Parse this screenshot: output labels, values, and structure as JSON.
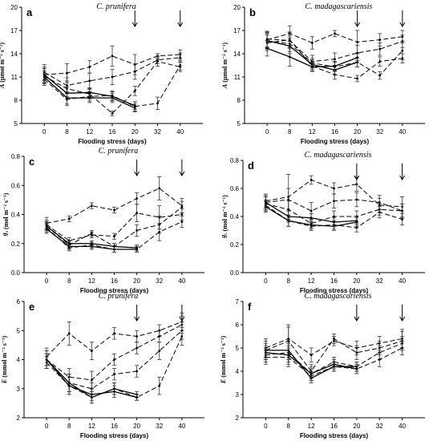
{
  "figure": {
    "x_axis_label": "Flooding stress (days)",
    "x_categories": [
      "0",
      "8",
      "12",
      "16",
      "20",
      "32",
      "40"
    ]
  },
  "chart_data": [
    {
      "id": "a",
      "letter": "a",
      "species": "C. prunifera",
      "type": "line",
      "ylabel_var": "A",
      "ylabel_unit": " (µmol m⁻² s⁻¹)",
      "ylim": [
        5,
        20
      ],
      "yticks": [
        5,
        8,
        11,
        14,
        17,
        20
      ],
      "arrows_at": [
        4,
        6
      ],
      "series": [
        {
          "style": "dashed",
          "values": [
            11.3,
            11.5,
            12.3,
            13.7,
            12.6,
            13.7,
            13.9
          ],
          "errors": [
            1.0,
            1.2,
            0.8,
            1.3,
            1.3,
            0.3,
            0.6
          ]
        },
        {
          "style": "dashed",
          "values": [
            11.6,
            9.9,
            10.5,
            11.0,
            11.7,
            13.2,
            13.5
          ],
          "errors": [
            1.0,
            1.0,
            1.0,
            1.0,
            1.0,
            0.5,
            0.6
          ]
        },
        {
          "style": "dashed",
          "values": [
            11.1,
            9.5,
            8.8,
            6.3,
            9.2,
            13.0,
            12.3
          ],
          "errors": [
            1.0,
            1.0,
            0.6,
            0.3,
            0.6,
            0.6,
            0.6
          ]
        },
        {
          "style": "dashed",
          "values": [
            10.7,
            8.1,
            8.5,
            8.6,
            7.2,
            7.6,
            12.5
          ],
          "errors": [
            0.8,
            0.8,
            0.6,
            0.6,
            0.6,
            0.8,
            0.6
          ]
        },
        {
          "style": "solid",
          "values": [
            11.0,
            8.3,
            8.3,
            8.3,
            7.0,
            null,
            null
          ],
          "errors": [
            0.8,
            0.8,
            0.6,
            0.6,
            0.5,
            null,
            null
          ]
        },
        {
          "style": "solid",
          "values": [
            11.3,
            8.9,
            9.0,
            8.5,
            7.3,
            null,
            null
          ],
          "errors": [
            0.8,
            0.8,
            0.6,
            0.6,
            0.5,
            null,
            null
          ]
        }
      ]
    },
    {
      "id": "b",
      "letter": "b",
      "species": "C. madagascariensis",
      "type": "line",
      "ylabel_var": "A",
      "ylabel_unit": " (µmol m⁻² s⁻¹)",
      "ylim": [
        5,
        20
      ],
      "yticks": [
        5,
        8,
        11,
        14,
        17,
        20
      ],
      "arrows_at": [
        4,
        6
      ],
      "series": [
        {
          "style": "dashed",
          "values": [
            15.8,
            16.6,
            15.4,
            16.6,
            15.5,
            15.8,
            16.2
          ],
          "errors": [
            1.0,
            1.0,
            0.8,
            0.4,
            1.5,
            0.8,
            0.8
          ]
        },
        {
          "style": "dashed",
          "values": [
            15.9,
            15.7,
            13.0,
            13.3,
            14.1,
            14.6,
            15.6
          ],
          "errors": [
            1.0,
            1.0,
            0.8,
            0.8,
            1.0,
            0.8,
            0.8
          ]
        },
        {
          "style": "dashed",
          "values": [
            15.4,
            15.8,
            12.4,
            11.3,
            10.8,
            13.0,
            13.4
          ],
          "errors": [
            1.0,
            1.0,
            0.6,
            0.6,
            0.4,
            0.6,
            0.6
          ]
        },
        {
          "style": "dashed",
          "values": [
            15.6,
            15.3,
            12.8,
            12.3,
            12.9,
            11.2,
            14.4
          ],
          "errors": [
            1.0,
            1.0,
            0.6,
            0.6,
            0.6,
            0.5,
            1.2
          ]
        },
        {
          "style": "solid",
          "values": [
            15.7,
            15.0,
            12.6,
            11.9,
            12.9,
            null,
            null
          ],
          "errors": [
            1.0,
            1.0,
            0.6,
            0.6,
            0.6,
            null,
            null
          ]
        },
        {
          "style": "solid",
          "values": [
            14.7,
            13.6,
            12.3,
            12.4,
            13.5,
            null,
            null
          ],
          "errors": [
            1.0,
            1.2,
            0.6,
            0.6,
            0.6,
            null,
            null
          ]
        }
      ]
    },
    {
      "id": "c",
      "letter": "c",
      "species": "C. prunifera",
      "type": "line",
      "ylabel_var": "g",
      "ylabel_sub": "s",
      "ylabel_unit": " (mol m⁻² s⁻¹)",
      "ylim": [
        0.0,
        0.8
      ],
      "yticks": [
        0.0,
        0.2,
        0.4,
        0.6,
        0.8
      ],
      "arrows_at": [
        4,
        6
      ],
      "series": [
        {
          "style": "dashed",
          "values": [
            0.34,
            0.37,
            0.46,
            0.43,
            0.51,
            0.58,
            0.46
          ],
          "errors": [
            0.04,
            0.02,
            0.02,
            0.02,
            0.04,
            0.08,
            0.05
          ]
        },
        {
          "style": "dashed",
          "values": [
            0.33,
            0.22,
            0.26,
            0.25,
            0.41,
            0.38,
            0.4
          ],
          "errors": [
            0.03,
            0.02,
            0.02,
            0.02,
            0.06,
            0.08,
            0.04
          ]
        },
        {
          "style": "dashed",
          "values": [
            0.32,
            0.19,
            0.27,
            0.18,
            0.29,
            0.33,
            0.45
          ],
          "errors": [
            0.03,
            0.02,
            0.02,
            0.02,
            0.04,
            0.06,
            0.04
          ]
        },
        {
          "style": "dashed",
          "values": [
            0.31,
            0.17,
            0.19,
            0.16,
            0.16,
            0.28,
            0.35
          ],
          "errors": [
            0.03,
            0.02,
            0.02,
            0.02,
            0.02,
            0.06,
            0.04
          ]
        },
        {
          "style": "solid",
          "values": [
            0.3,
            0.18,
            0.18,
            0.16,
            0.16,
            null,
            null
          ],
          "errors": [
            0.03,
            0.02,
            0.02,
            0.02,
            0.02,
            null,
            null
          ]
        },
        {
          "style": "solid",
          "values": [
            0.32,
            0.2,
            0.2,
            0.18,
            0.17,
            null,
            null
          ],
          "errors": [
            0.03,
            0.02,
            0.02,
            0.02,
            0.02,
            null,
            null
          ]
        }
      ]
    },
    {
      "id": "d",
      "letter": "d",
      "species": "C. madagascariensis",
      "type": "line",
      "ylabel_var": "g",
      "ylabel_sub": "s",
      "ylabel_unit": " (mol m⁻² s⁻¹)",
      "ylim": [
        0.0,
        0.8
      ],
      "yticks": [
        0.0,
        0.2,
        0.4,
        0.6,
        0.8
      ],
      "arrows_at": [
        4,
        6
      ],
      "series": [
        {
          "style": "dashed",
          "values": [
            0.51,
            0.54,
            0.66,
            0.6,
            0.63,
            0.48,
            0.47
          ],
          "errors": [
            0.05,
            0.16,
            0.03,
            0.04,
            0.05,
            0.05,
            0.07
          ]
        },
        {
          "style": "dashed",
          "values": [
            0.5,
            0.52,
            0.44,
            0.51,
            0.52,
            0.5,
            0.44
          ],
          "errors": [
            0.05,
            0.08,
            0.06,
            0.05,
            0.05,
            0.05,
            0.05
          ]
        },
        {
          "style": "dashed",
          "values": [
            0.49,
            0.45,
            0.35,
            0.4,
            0.4,
            0.45,
            0.44
          ],
          "errors": [
            0.05,
            0.06,
            0.03,
            0.04,
            0.04,
            0.04,
            0.05
          ]
        },
        {
          "style": "dashed",
          "values": [
            0.48,
            0.37,
            0.33,
            0.34,
            0.32,
            0.43,
            0.38
          ],
          "errors": [
            0.04,
            0.04,
            0.03,
            0.03,
            0.03,
            0.04,
            0.04
          ]
        },
        {
          "style": "solid",
          "values": [
            0.47,
            0.37,
            0.34,
            0.33,
            0.36,
            null,
            null
          ],
          "errors": [
            0.04,
            0.04,
            0.03,
            0.03,
            0.03,
            null,
            null
          ]
        },
        {
          "style": "solid",
          "values": [
            0.5,
            0.4,
            0.39,
            0.36,
            0.37,
            null,
            null
          ],
          "errors": [
            0.04,
            0.04,
            0.03,
            0.03,
            0.03,
            null,
            null
          ]
        }
      ]
    },
    {
      "id": "e",
      "letter": "e",
      "species": "C. prunifera",
      "type": "line",
      "ylabel_var": "E",
      "ylabel_unit": " (mmol m⁻² s⁻¹)",
      "ylim": [
        2,
        6
      ],
      "yticks": [
        2,
        3,
        4,
        5,
        6
      ],
      "arrows_at": [
        4,
        6
      ],
      "series": [
        {
          "style": "dashed",
          "values": [
            4.1,
            4.9,
            4.3,
            4.9,
            4.8,
            5.0,
            5.3
          ],
          "errors": [
            0.3,
            0.4,
            0.3,
            0.2,
            0.2,
            0.2,
            0.3
          ]
        },
        {
          "style": "dashed",
          "values": [
            4.0,
            3.4,
            3.3,
            4.0,
            4.4,
            4.8,
            5.2
          ],
          "errors": [
            0.3,
            0.3,
            0.3,
            0.2,
            0.2,
            0.2,
            0.3
          ]
        },
        {
          "style": "dashed",
          "values": [
            4.0,
            3.2,
            3.0,
            3.5,
            3.6,
            4.3,
            5.0
          ],
          "errors": [
            0.3,
            0.3,
            0.2,
            0.2,
            0.2,
            0.3,
            0.3
          ]
        },
        {
          "style": "dashed",
          "values": [
            3.9,
            3.1,
            2.7,
            3.0,
            2.7,
            3.1,
            4.8
          ],
          "errors": [
            0.2,
            0.3,
            0.2,
            0.2,
            0.1,
            0.3,
            0.3
          ]
        },
        {
          "style": "solid",
          "values": [
            4.0,
            3.2,
            2.7,
            3.0,
            2.8,
            null,
            null
          ],
          "errors": [
            0.2,
            0.3,
            0.2,
            0.2,
            0.1,
            null,
            null
          ]
        },
        {
          "style": "solid",
          "values": [
            4.0,
            3.1,
            2.8,
            2.9,
            2.7,
            null,
            null
          ],
          "errors": [
            0.2,
            0.3,
            0.2,
            0.2,
            0.1,
            null,
            null
          ]
        }
      ]
    },
    {
      "id": "f",
      "letter": "f",
      "species": "C. madagascariensis",
      "type": "line",
      "ylabel_var": "E",
      "ylabel_unit": " (mmol m⁻² s⁻¹)",
      "ylim": [
        2,
        7
      ],
      "yticks": [
        2,
        3,
        4,
        5,
        6,
        7
      ],
      "arrows_at": [
        4,
        6
      ],
      "series": [
        {
          "style": "dashed",
          "values": [
            5.0,
            5.4,
            4.7,
            5.3,
            5.0,
            5.2,
            5.4
          ],
          "errors": [
            0.4,
            0.6,
            0.3,
            0.2,
            0.3,
            0.3,
            0.4
          ]
        },
        {
          "style": "dashed",
          "values": [
            4.9,
            5.3,
            4.0,
            5.4,
            4.8,
            5.0,
            5.3
          ],
          "errors": [
            0.4,
            0.6,
            0.3,
            0.2,
            0.3,
            0.3,
            0.4
          ]
        },
        {
          "style": "dashed",
          "values": [
            4.7,
            4.8,
            3.9,
            4.4,
            4.2,
            4.8,
            5.2
          ],
          "errors": [
            0.3,
            0.4,
            0.3,
            0.2,
            0.2,
            0.3,
            0.3
          ]
        },
        {
          "style": "dashed",
          "values": [
            4.6,
            4.6,
            3.8,
            4.2,
            4.1,
            4.5,
            5.0
          ],
          "errors": [
            0.3,
            0.4,
            0.2,
            0.2,
            0.2,
            0.3,
            0.3
          ]
        },
        {
          "style": "solid",
          "values": [
            4.9,
            4.9,
            3.7,
            4.2,
            4.2,
            null,
            null
          ],
          "errors": [
            0.3,
            0.4,
            0.2,
            0.2,
            0.2,
            null,
            null
          ]
        },
        {
          "style": "solid",
          "values": [
            4.8,
            4.7,
            3.9,
            4.3,
            4.1,
            null,
            null
          ],
          "errors": [
            0.3,
            0.4,
            0.2,
            0.2,
            0.2,
            null,
            null
          ]
        }
      ]
    }
  ]
}
